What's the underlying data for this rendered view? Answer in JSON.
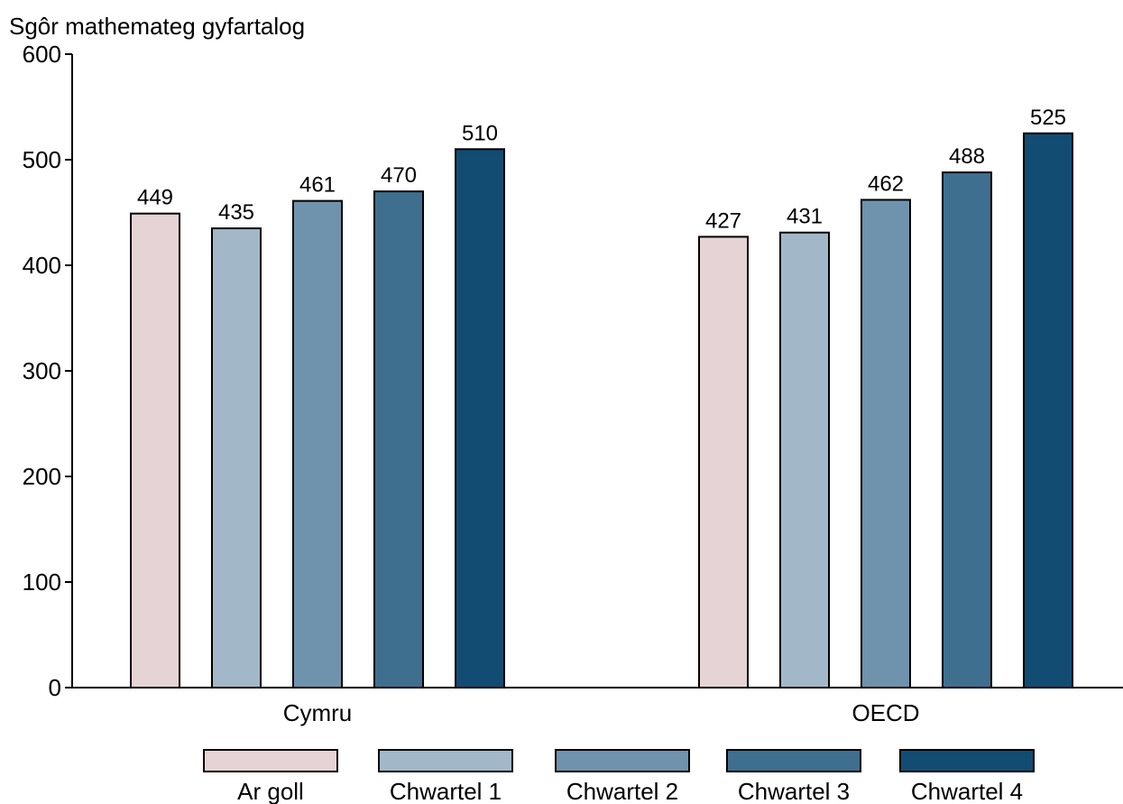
{
  "chart_data": {
    "type": "bar",
    "ylabel": "Sgôr mathemateg gyfartalog",
    "ylim": [
      0,
      600
    ],
    "yticks": [
      0,
      100,
      200,
      300,
      400,
      500,
      600
    ],
    "categories": [
      "Cymru",
      "OECD"
    ],
    "series": [
      {
        "name": "Ar goll",
        "color": "#e6d3d5",
        "values": [
          449,
          427
        ]
      },
      {
        "name": "Chwartel 1",
        "color": "#a2b8c8",
        "values": [
          435,
          431
        ]
      },
      {
        "name": "Chwartel 2",
        "color": "#6f93ac",
        "values": [
          461,
          462
        ]
      },
      {
        "name": "Chwartel 3",
        "color": "#3f6f8f",
        "values": [
          470,
          488
        ]
      },
      {
        "name": "Chwartel 4",
        "color": "#124c73",
        "values": [
          510,
          525
        ]
      }
    ],
    "legend_position": "bottom",
    "grid": false
  }
}
